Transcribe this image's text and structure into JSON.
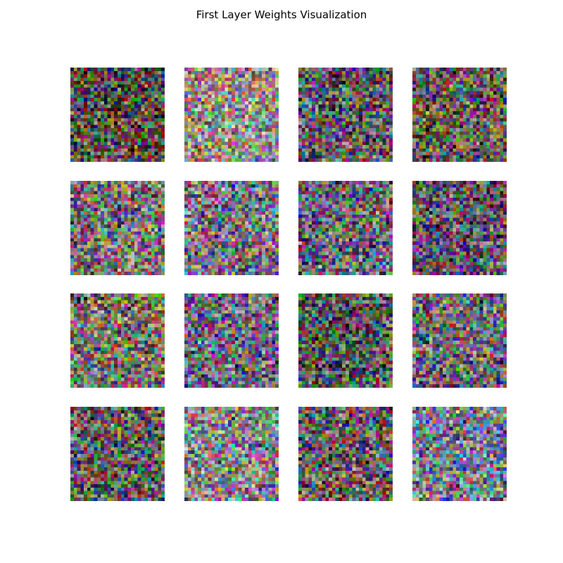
{
  "chart_data": {
    "type": "heatmap",
    "title": "First Layer Weights Visualization",
    "grid_rows": 4,
    "grid_cols": 4,
    "panels": [
      {
        "id": 1,
        "tone": "#6f6658",
        "stripes": "horizontal",
        "brightness": 0.78
      },
      {
        "id": 2,
        "tone": "#9a9088",
        "stripes": "none",
        "brightness": 0.98
      },
      {
        "id": 3,
        "tone": "#756f73",
        "stripes": "horizontal",
        "brightness": 0.82
      },
      {
        "id": 4,
        "tone": "#7b6e66",
        "stripes": "horizontal",
        "brightness": 0.85
      },
      {
        "id": 5,
        "tone": "#8a7f7d",
        "stripes": "none",
        "brightness": 0.9
      },
      {
        "id": 6,
        "tone": "#857e8c",
        "stripes": "horizontal",
        "brightness": 0.92
      },
      {
        "id": 7,
        "tone": "#7e7388",
        "stripes": "horizontal",
        "brightness": 0.86
      },
      {
        "id": 8,
        "tone": "#746878",
        "stripes": "none",
        "brightness": 0.84
      },
      {
        "id": 9,
        "tone": "#867f6f",
        "stripes": "horizontal",
        "brightness": 0.92
      },
      {
        "id": 10,
        "tone": "#7a7487",
        "stripes": "horizontal",
        "brightness": 0.9
      },
      {
        "id": 11,
        "tone": "#6b6d6c",
        "stripes": "none",
        "brightness": 0.8
      },
      {
        "id": 12,
        "tone": "#7d7a84",
        "stripes": "horizontal",
        "brightness": 0.88
      },
      {
        "id": 13,
        "tone": "#766e70",
        "stripes": "horizontal",
        "brightness": 0.84
      },
      {
        "id": 14,
        "tone": "#8f8f8a",
        "stripes": "horizontal",
        "brightness": 0.96
      },
      {
        "id": 15,
        "tone": "#7b7070",
        "stripes": "horizontal",
        "brightness": 0.86
      },
      {
        "id": 16,
        "tone": "#85849a",
        "stripes": "horizontal",
        "brightness": 0.94
      }
    ],
    "pixels_per_side": 28,
    "axes": "off"
  }
}
